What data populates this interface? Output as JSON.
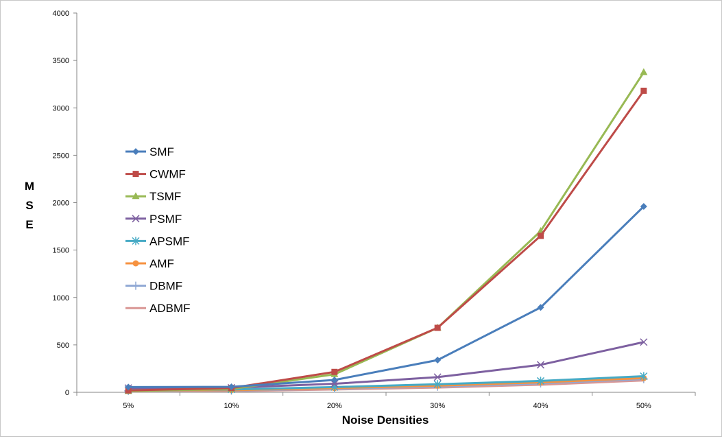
{
  "chart_data": {
    "type": "line",
    "title": "",
    "xlabel": "Noise Densities",
    "ylabel": "M S E",
    "ylabel_letters": [
      "M",
      "S",
      "E"
    ],
    "categories": [
      "5%",
      "10%",
      "20%",
      "30%",
      "40%",
      "50%"
    ],
    "ylim": [
      0,
      4000
    ],
    "yticks": [
      0,
      500,
      1000,
      1500,
      2000,
      2500,
      3000,
      3500,
      4000
    ],
    "grid": false,
    "legend_position": "left",
    "series": [
      {
        "name": "SMF",
        "color": "#4a7ebb",
        "marker": "diamond",
        "values": [
          55,
          58,
          130,
          340,
          895,
          1960
        ]
      },
      {
        "name": "CWMF",
        "color": "#be4b48",
        "marker": "square",
        "values": [
          20,
          45,
          215,
          680,
          1650,
          3180
        ]
      },
      {
        "name": "TSMF",
        "color": "#98b954",
        "marker": "triangle",
        "values": [
          12,
          35,
          190,
          680,
          1700,
          3375
        ]
      },
      {
        "name": "PSMF",
        "color": "#7d60a0",
        "marker": "x",
        "values": [
          45,
          48,
          90,
          160,
          290,
          530
        ]
      },
      {
        "name": "APSMF",
        "color": "#46aac5",
        "marker": "asterisk",
        "values": [
          25,
          30,
          55,
          85,
          120,
          170
        ]
      },
      {
        "name": "AMF",
        "color": "#f69240",
        "marker": "circle",
        "values": [
          20,
          22,
          45,
          70,
          105,
          150
        ]
      },
      {
        "name": "DBMF",
        "color": "#8fa8d4",
        "marker": "plus",
        "values": [
          15,
          18,
          40,
          60,
          95,
          140
        ]
      },
      {
        "name": "ADBMF",
        "color": "#d99694",
        "marker": "none",
        "values": [
          10,
          12,
          30,
          50,
          80,
          125
        ]
      }
    ]
  }
}
